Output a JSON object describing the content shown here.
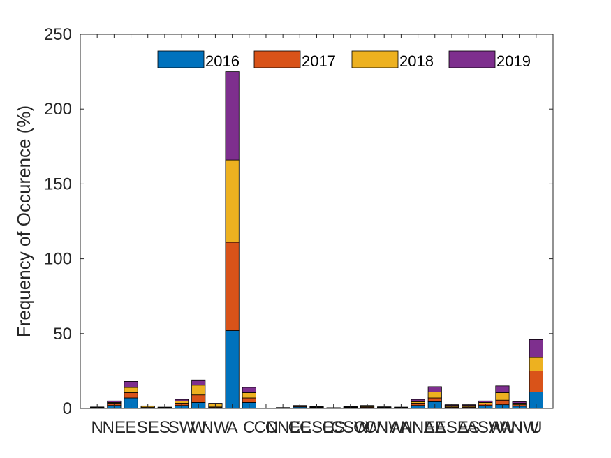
{
  "chart_data": {
    "type": "bar",
    "stacked": true,
    "title": "",
    "xlabel": "",
    "ylabel": "Frequency of Occurence (%)",
    "ylim": [
      0,
      250
    ],
    "yticks": [
      0,
      50,
      100,
      150,
      200,
      250
    ],
    "grid": false,
    "legend_position": "top-right",
    "categories": [
      "N",
      "NE",
      "E",
      "SE",
      "S",
      "SW",
      "W",
      "NW",
      "A",
      "C",
      "CN",
      "CNE",
      "CE",
      "CSE",
      "CS",
      "CSW",
      "CW",
      "CNW",
      "AN",
      "ANE",
      "AE",
      "ASE",
      "AS",
      "ASW",
      "AW",
      "ANW",
      "U"
    ],
    "series": [
      {
        "name": "2016",
        "color": "#0072BD",
        "values": [
          0.3,
          2,
          7,
          0.3,
          0.3,
          2,
          4,
          0.5,
          52,
          4,
          0,
          0.2,
          1,
          0.5,
          0.2,
          0.3,
          0.5,
          0.3,
          0.3,
          2,
          4.5,
          0.5,
          0.5,
          2,
          2.5,
          1.5,
          11
        ]
      },
      {
        "name": "2017",
        "color": "#D95319",
        "values": [
          0.3,
          1.5,
          3.5,
          0.4,
          0.2,
          1.5,
          5,
          0.5,
          59,
          3,
          0,
          0.2,
          0.5,
          0.3,
          0.1,
          0.3,
          0.5,
          0.3,
          0.2,
          1.5,
          2.5,
          0.5,
          0.5,
          1,
          3,
          1,
          14
        ]
      },
      {
        "name": "2018",
        "color": "#EDB120",
        "values": [
          0.2,
          0.5,
          3.5,
          0.8,
          0.2,
          1.5,
          6.5,
          2,
          55,
          3.5,
          0,
          0.1,
          0.3,
          0.2,
          0.1,
          0.3,
          0.5,
          0.2,
          0.2,
          1,
          4,
          1,
          1,
          1,
          5,
          1,
          9
        ]
      },
      {
        "name": "2019",
        "color": "#7E2F8E",
        "values": [
          0.2,
          1,
          4,
          0.2,
          0.2,
          1,
          3.5,
          0.5,
          59,
          3.5,
          0,
          0.1,
          0.2,
          0.2,
          0.1,
          0.3,
          0.5,
          0.3,
          0.2,
          1.5,
          3.5,
          0.5,
          0.5,
          1,
          4.5,
          1,
          12
        ]
      }
    ]
  }
}
